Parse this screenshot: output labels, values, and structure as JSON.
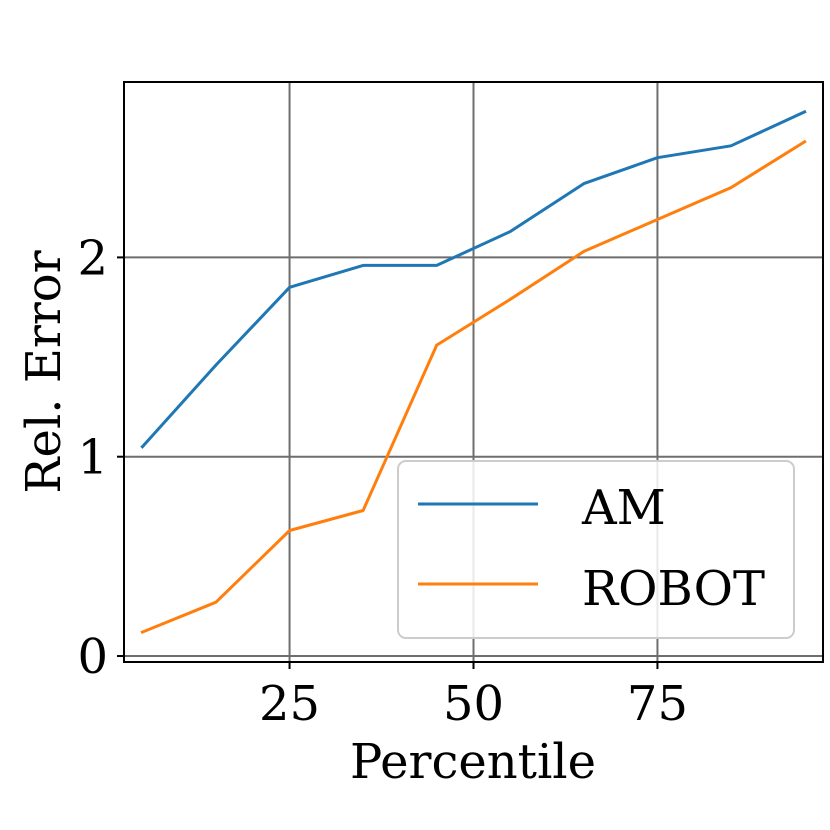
{
  "chart_data": {
    "type": "line",
    "xlabel": "Percentile",
    "ylabel": "Rel. Error",
    "xlim": [
      2.5,
      97.5
    ],
    "ylim": [
      -0.03,
      2.88
    ],
    "xticks": [
      25,
      50,
      75
    ],
    "yticks": [
      0,
      1,
      2
    ],
    "x": [
      5,
      15,
      25,
      35,
      45,
      55,
      65,
      75,
      85,
      95
    ],
    "series": [
      {
        "name": "AM",
        "color": "#1f77b4",
        "values": [
          1.05,
          1.46,
          1.85,
          1.96,
          1.96,
          2.13,
          2.37,
          2.5,
          2.56,
          2.73
        ]
      },
      {
        "name": "ROBOT",
        "color": "#ff7f0e",
        "values": [
          0.12,
          0.27,
          0.63,
          0.73,
          1.56,
          1.79,
          2.03,
          2.19,
          2.35,
          2.58
        ]
      }
    ],
    "grid": true,
    "legend_position": "lower-right"
  }
}
